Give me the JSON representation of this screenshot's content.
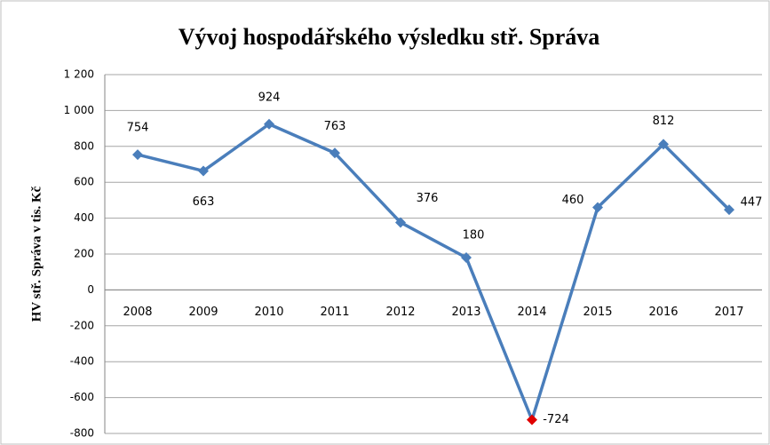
{
  "chart_data": {
    "type": "line",
    "title": "Vývoj hospodářského výsledku stř.  Správa",
    "y_label": "HV stř. Správa  v tis. Kč",
    "categories": [
      "2008",
      "2009",
      "2010",
      "2011",
      "2012",
      "2013",
      "2014",
      "2015",
      "2016",
      "2017"
    ],
    "series": [
      {
        "name": "HV",
        "color": "#4a7ebb",
        "values": [
          754,
          663,
          924,
          763,
          376,
          180,
          -724,
          460,
          812,
          447
        ],
        "marker_colors": [
          "#4a7ebb",
          "#4a7ebb",
          "#4a7ebb",
          "#4a7ebb",
          "#4a7ebb",
          "#4a7ebb",
          "#e00000",
          "#4a7ebb",
          "#4a7ebb",
          "#4a7ebb"
        ]
      }
    ],
    "ylim": [
      -800,
      1200
    ],
    "yticks": [
      -800,
      -600,
      -400,
      -200,
      0,
      200,
      400,
      600,
      800,
      {
        "value": 1000,
        "label": "1 000"
      },
      {
        "value": 1200,
        "label": "1 200"
      }
    ],
    "grid": true
  }
}
